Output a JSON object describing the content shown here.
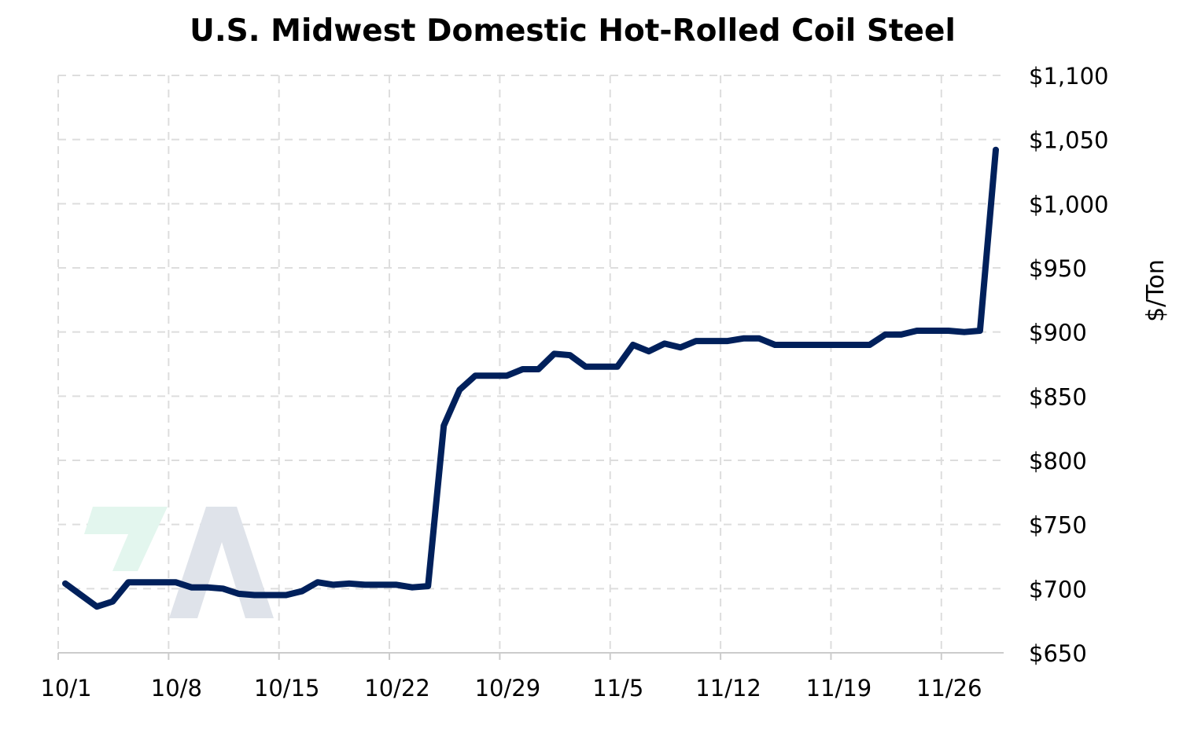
{
  "chart_data": {
    "type": "line",
    "title": "U.S. Midwest Domestic Hot-Rolled Coil Steel",
    "xlabel": "",
    "ylabel": "$/Ton",
    "ylim": [
      650,
      1100
    ],
    "y_ticks": [
      650,
      700,
      750,
      800,
      850,
      900,
      950,
      1000,
      1050,
      1100
    ],
    "y_tick_labels": [
      "$650",
      "$700",
      "$750",
      "$800",
      "$850",
      "$900",
      "$950",
      "$1,000",
      "$1,050",
      "$1,100"
    ],
    "x_ticks": [
      "10/1",
      "10/8",
      "10/15",
      "10/22",
      "10/29",
      "11/5",
      "11/12",
      "11/19",
      "11/26"
    ],
    "grid": true,
    "legend": "none",
    "y_axis_position": "right",
    "line_color": "#00205b",
    "grid_color": "#dddddd",
    "series": [
      {
        "x": [
          "10/1",
          "10/2",
          "10/3",
          "10/4",
          "10/5",
          "10/6",
          "10/7",
          "10/8",
          "10/9",
          "10/10",
          "10/11",
          "10/12",
          "10/13",
          "10/14",
          "10/15",
          "10/16",
          "10/17",
          "10/18",
          "10/19",
          "10/20",
          "10/21",
          "10/22",
          "10/23",
          "10/24",
          "10/25",
          "10/26",
          "10/27",
          "10/28",
          "10/29",
          "10/30",
          "10/31",
          "11/1",
          "11/2",
          "11/3",
          "11/4",
          "11/5",
          "11/6",
          "11/7",
          "11/8",
          "11/9",
          "11/10",
          "11/11",
          "11/12",
          "11/13",
          "11/14",
          "11/15",
          "11/16",
          "11/17",
          "11/18",
          "11/19",
          "11/20",
          "11/21",
          "11/22",
          "11/23",
          "11/24",
          "11/25",
          "11/26",
          "11/27",
          "11/28",
          "11/29"
        ],
        "values": [
          704,
          695,
          686,
          690,
          705,
          705,
          705,
          705,
          701,
          701,
          700,
          696,
          695,
          695,
          695,
          698,
          705,
          703,
          704,
          703,
          703,
          703,
          701,
          702,
          827,
          855,
          866,
          866,
          866,
          871,
          871,
          883,
          882,
          873,
          873,
          873,
          890,
          885,
          891,
          888,
          893,
          893,
          893,
          895,
          895,
          890,
          890,
          890,
          890,
          890,
          890,
          890,
          898,
          898,
          901,
          901,
          901,
          900,
          901,
          1042
        ]
      }
    ]
  }
}
